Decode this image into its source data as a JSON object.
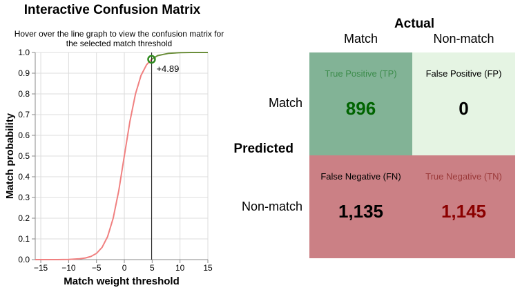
{
  "title": "Interactive Confusion Matrix",
  "subtitle": "Hover over the line graph to view the confusion matrix for the selected match threshold",
  "chart_data": {
    "type": "line",
    "xlabel": "Match weight threshold",
    "ylabel": "Match probability",
    "xlim": [
      -16,
      15
    ],
    "ylim": [
      0,
      1
    ],
    "xticks": [
      -15,
      -10,
      -5,
      0,
      5,
      10,
      15
    ],
    "yticks": [
      0.0,
      0.1,
      0.2,
      0.3,
      0.4,
      0.5,
      0.6,
      0.7,
      0.8,
      0.9,
      1.0
    ],
    "x_tick_labels": [
      "−15",
      "−10",
      "−5",
      "0",
      "5",
      "10",
      "15"
    ],
    "y_tick_labels": [
      "0.0",
      "0.1",
      "0.2",
      "0.3",
      "0.4",
      "0.5",
      "0.6",
      "0.7",
      "0.8",
      "0.9",
      "1.0"
    ],
    "grid": true,
    "curve": "logistic match probability as a function of match weight",
    "series": [
      {
        "x": [
          -16,
          -14,
          -12,
          -10,
          -8,
          -7,
          -6,
          -5,
          -4,
          -3,
          -2,
          -1,
          0,
          1,
          2,
          3,
          4,
          4.89,
          6,
          8,
          10,
          12,
          15
        ],
        "y": [
          0.0,
          0.0,
          0.0,
          0.001,
          0.004,
          0.008,
          0.015,
          0.03,
          0.059,
          0.111,
          0.2,
          0.333,
          0.5,
          0.667,
          0.8,
          0.889,
          0.941,
          0.967,
          0.985,
          0.996,
          0.999,
          1.0,
          1.0
        ],
        "color_below_threshold": "#f08080",
        "color_above_threshold": "#6b8e3a"
      }
    ],
    "threshold": {
      "value": 4.89,
      "label": "+4.89",
      "marker_color": "#2e8b1e"
    }
  },
  "confusion_matrix": {
    "actual_title": "Actual",
    "predicted_title": "Predicted",
    "col_match": "Match",
    "col_nonmatch": "Non-match",
    "row_match": "Match",
    "row_nonmatch": "Non-match",
    "cells": {
      "tp": {
        "label": "True Positive (TP)",
        "value": "896",
        "bg": "#82b396",
        "text_color": "#3d8c4c",
        "value_color": "#006400"
      },
      "fp": {
        "label": "False Positive (FP)",
        "value": "0",
        "bg": "#e5f4e3",
        "text_color": "#000000",
        "value_color": "#000000"
      },
      "fn": {
        "label": "False Negative (FN)",
        "value": "1,135",
        "bg": "#cb8085",
        "text_color": "#000000",
        "value_color": "#000000"
      },
      "tn": {
        "label": "True Negative (TN)",
        "value": "1,145",
        "bg": "#cb8085",
        "text_color": "#9b3a3a",
        "value_color": "#8b0000"
      }
    }
  }
}
